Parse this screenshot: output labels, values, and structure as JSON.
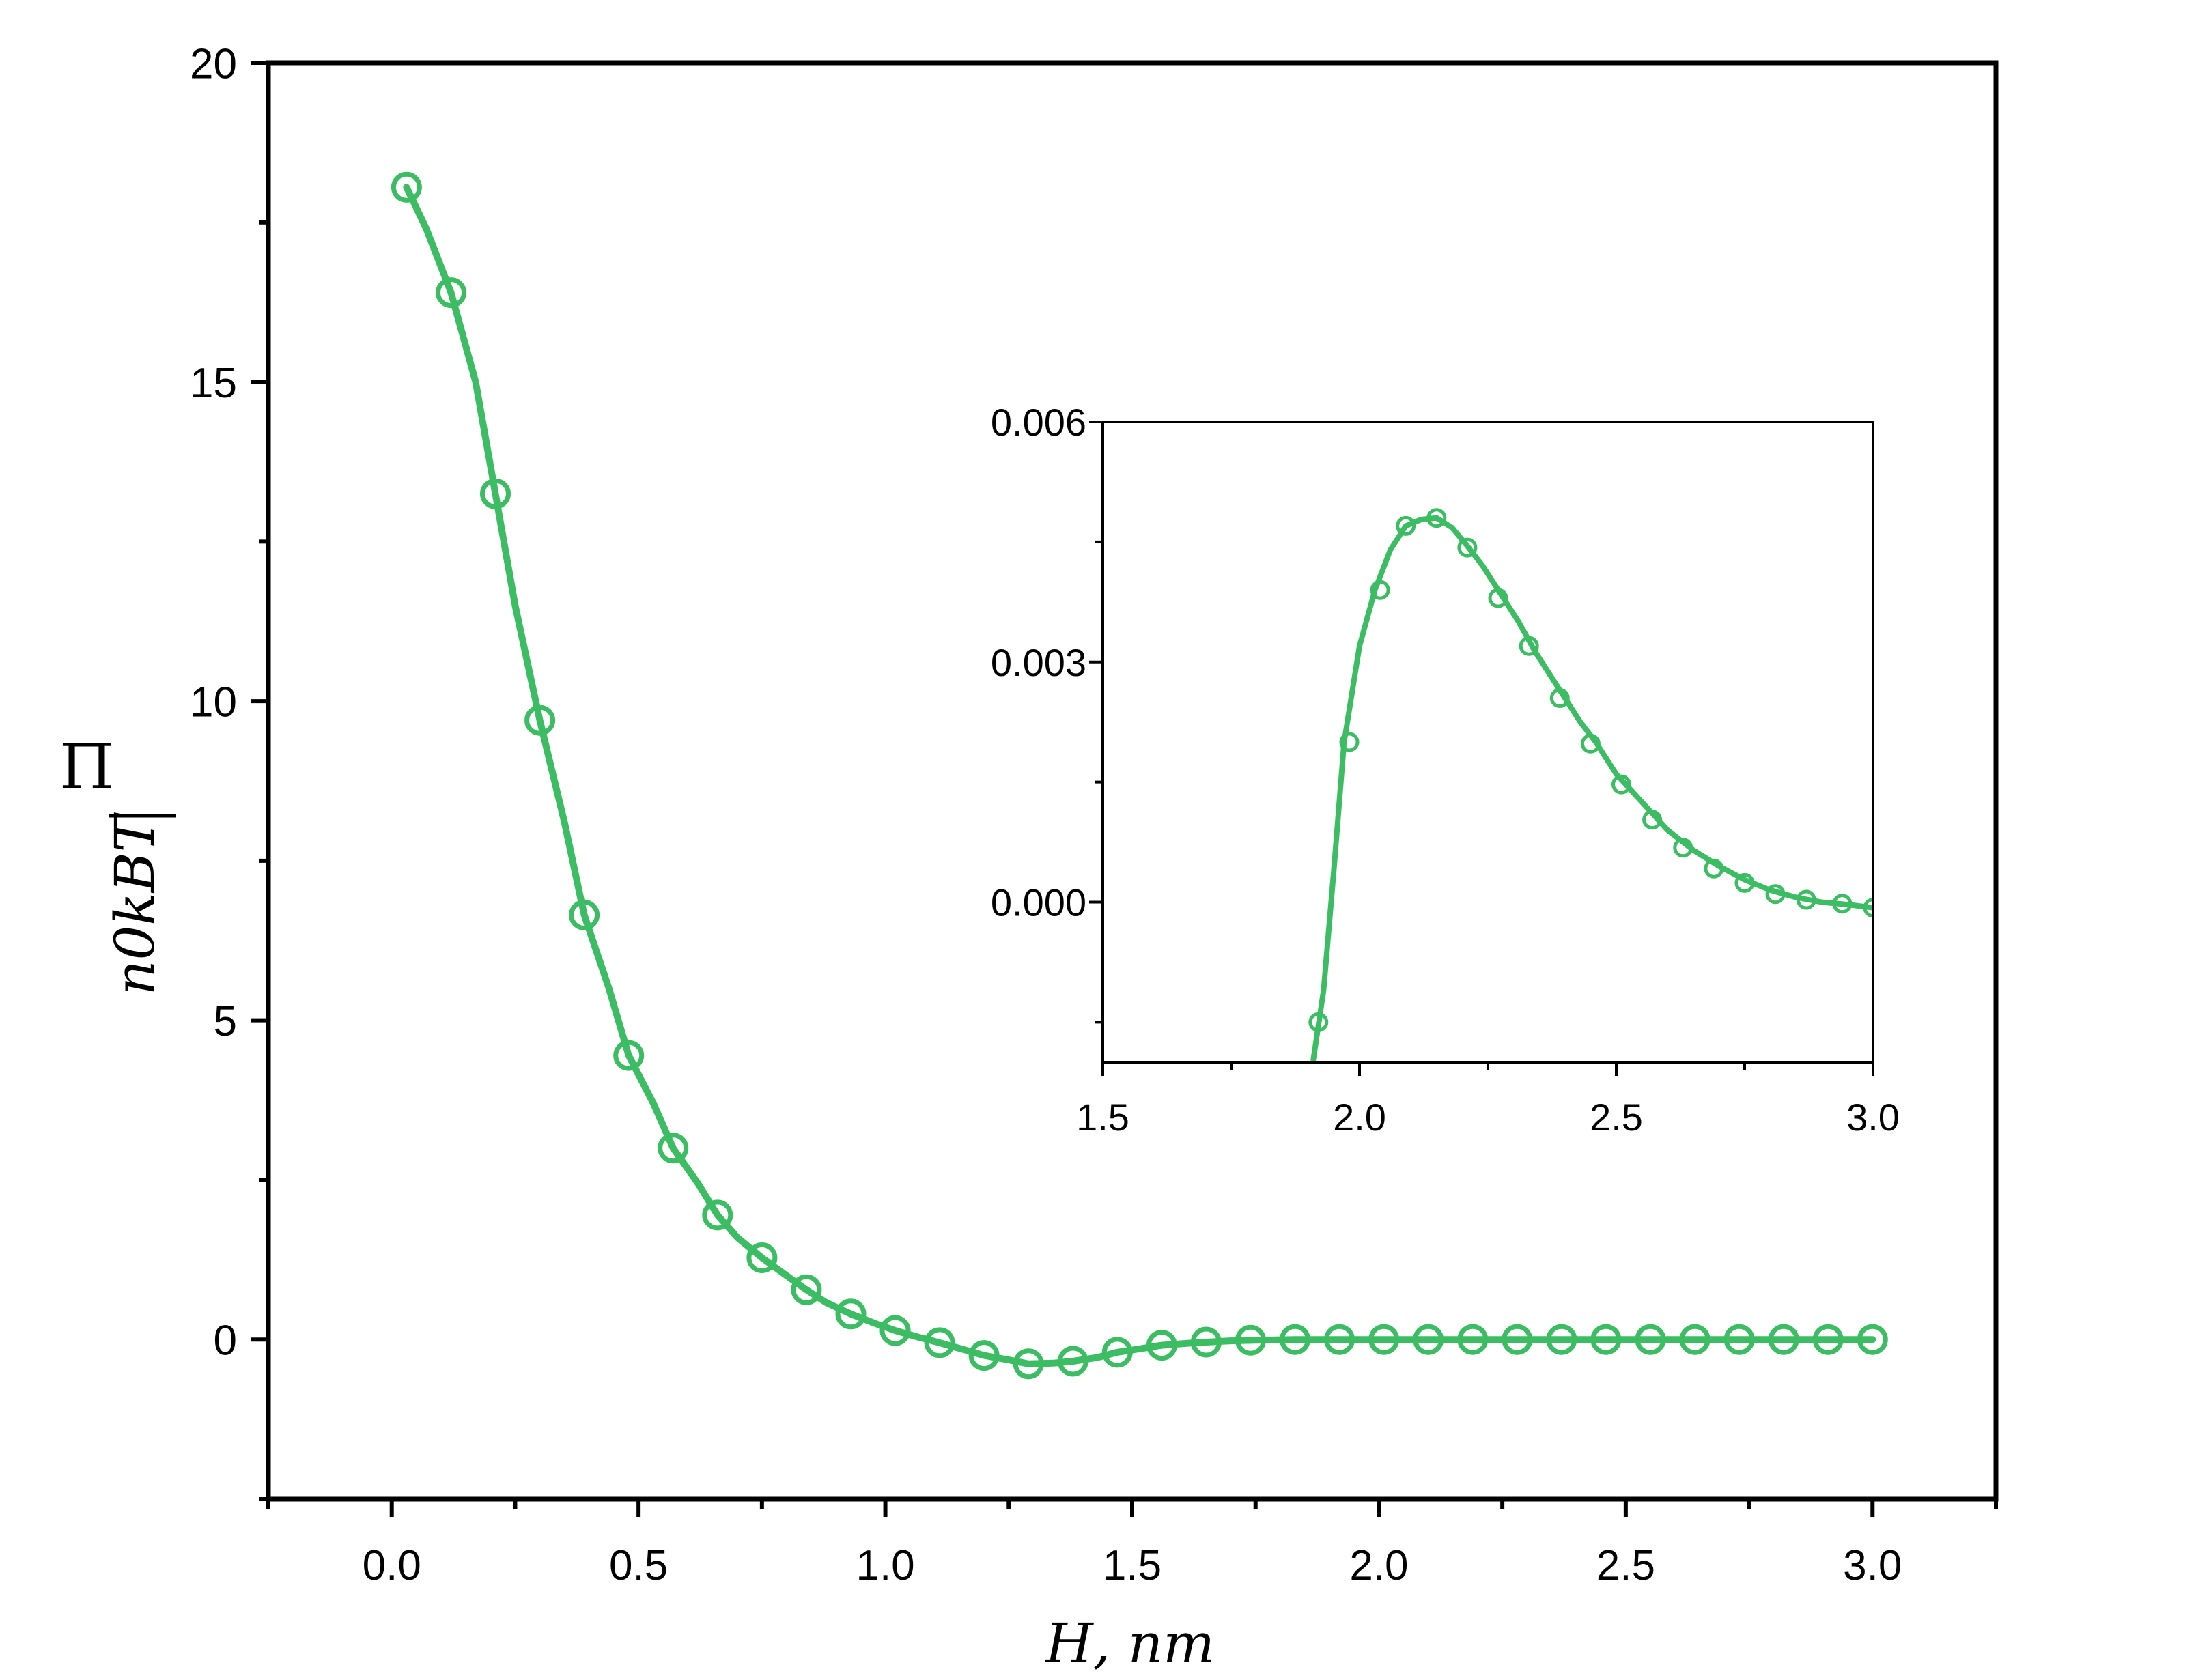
{
  "figure": {
    "ylabel": {
      "numerator": "Π",
      "denominator": "n0kBT"
    },
    "xlabel": "H, nm"
  },
  "colors": {
    "series": "#3dbd63",
    "axis": "#000000",
    "background": "#ffffff"
  },
  "chart_data": [
    {
      "id": "main",
      "type": "line",
      "title": "",
      "xlabel": "H, nm",
      "ylabel": "Π / (n0 kB T)",
      "xlim": [
        -0.25,
        3.25
      ],
      "ylim": [
        -2.5,
        20
      ],
      "xticks": [
        0.0,
        0.5,
        1.0,
        1.5,
        2.0,
        2.5,
        3.0
      ],
      "xtick_labels": [
        "0.0",
        "0.5",
        "1.0",
        "1.5",
        "2.0",
        "2.5",
        "3.0"
      ],
      "yticks": [
        0,
        5,
        10,
        15,
        20
      ],
      "ytick_labels": [
        "0",
        "5",
        "10",
        "15",
        "20"
      ],
      "grid": false,
      "legend": "none",
      "series": [
        {
          "style": "line",
          "x": [
            0.03,
            0.07,
            0.12,
            0.17,
            0.21,
            0.25,
            0.3,
            0.35,
            0.39,
            0.44,
            0.48,
            0.53,
            0.57,
            0.62,
            0.66,
            0.7,
            0.75,
            0.8,
            0.84,
            0.88,
            0.93,
            0.98,
            1.02,
            1.07,
            1.11,
            1.16,
            1.2,
            1.25,
            1.29,
            1.34,
            1.38,
            1.43,
            1.47,
            1.52,
            1.56,
            1.61,
            1.65,
            1.7,
            1.75,
            1.83,
            1.92,
            2.1,
            2.28,
            2.46,
            2.64,
            2.82,
            3.0
          ],
          "y": [
            18.05,
            17.4,
            16.4,
            15.0,
            13.25,
            11.5,
            9.7,
            8.1,
            6.65,
            5.5,
            4.45,
            3.7,
            3.0,
            2.45,
            1.95,
            1.6,
            1.28,
            1.0,
            0.78,
            0.58,
            0.4,
            0.25,
            0.14,
            0.03,
            -0.05,
            -0.16,
            -0.25,
            -0.32,
            -0.38,
            -0.37,
            -0.34,
            -0.28,
            -0.2,
            -0.14,
            -0.09,
            -0.06,
            -0.04,
            -0.02,
            -0.01,
            0.0,
            0.0,
            0.0,
            0.0,
            0.0,
            0.0,
            0.0,
            0.0
          ]
        },
        {
          "style": "markers",
          "marker": "open-circle",
          "x": [
            0.03,
            0.12,
            0.21,
            0.3,
            0.39,
            0.48,
            0.57,
            0.66,
            0.75,
            0.84,
            0.93,
            1.02,
            1.11,
            1.2,
            1.29,
            1.38,
            1.47,
            1.56,
            1.65,
            1.74,
            1.83,
            1.92,
            2.01,
            2.1,
            2.19,
            2.28,
            2.37,
            2.46,
            2.55,
            2.64,
            2.73,
            2.82,
            2.91,
            3.0
          ],
          "y": [
            18.05,
            16.4,
            13.25,
            9.7,
            6.65,
            4.45,
            3.0,
            1.95,
            1.28,
            0.78,
            0.4,
            0.14,
            -0.05,
            -0.25,
            -0.38,
            -0.34,
            -0.2,
            -0.09,
            -0.04,
            -0.01,
            0.0,
            0.0,
            0.0,
            0.0,
            0.0,
            0.0,
            0.0,
            0.0,
            0.0,
            0.0,
            0.0,
            0.0,
            0.0,
            0.0
          ]
        }
      ]
    },
    {
      "id": "inset",
      "type": "line",
      "title": "",
      "xlim": [
        1.5,
        3.0
      ],
      "ylim": [
        -0.002,
        0.006
      ],
      "xticks": [
        1.5,
        2.0,
        2.5,
        3.0
      ],
      "xtick_labels": [
        "1.5",
        "2.0",
        "2.5",
        "3.0"
      ],
      "yticks": [
        0.0,
        0.003,
        0.006
      ],
      "ytick_labels": [
        "0.000",
        "0.003",
        "0.006"
      ],
      "grid": false,
      "legend": "none",
      "series": [
        {
          "style": "line",
          "x": [
            1.91,
            1.93,
            1.95,
            1.97,
            2.0,
            2.03,
            2.06,
            2.09,
            2.12,
            2.15,
            2.18,
            2.21,
            2.24,
            2.28,
            2.31,
            2.34,
            2.37,
            2.4,
            2.43,
            2.46,
            2.5,
            2.55,
            2.6,
            2.65,
            2.7,
            2.75,
            2.8,
            2.85,
            2.9,
            2.95,
            3.0
          ],
          "y": [
            -0.00197,
            -0.0011,
            0.0004,
            0.002,
            0.0032,
            0.0039,
            0.0044,
            0.0047,
            0.00478,
            0.0048,
            0.00468,
            0.00445,
            0.0042,
            0.0038,
            0.0035,
            0.00315,
            0.00285,
            0.00255,
            0.00225,
            0.002,
            0.0016,
            0.00125,
            0.0009,
            0.00065,
            0.00045,
            0.00028,
            0.00015,
            6e-05,
            0.0,
            -3e-05,
            -7e-05
          ]
        },
        {
          "style": "markers",
          "marker": "open-circle",
          "x": [
            1.92,
            1.98,
            2.04,
            2.09,
            2.15,
            2.21,
            2.27,
            2.33,
            2.39,
            2.45,
            2.51,
            2.57,
            2.63,
            2.69,
            2.75,
            2.81,
            2.87,
            2.94,
            3.0
          ],
          "y": [
            -0.0015,
            0.002,
            0.0039,
            0.0047,
            0.0048,
            0.00443,
            0.0038,
            0.0032,
            0.00255,
            0.00198,
            0.00147,
            0.00103,
            0.00068,
            0.00042,
            0.00024,
            0.0001,
            3e-05,
            -2e-05,
            -7e-05
          ]
        }
      ]
    }
  ]
}
